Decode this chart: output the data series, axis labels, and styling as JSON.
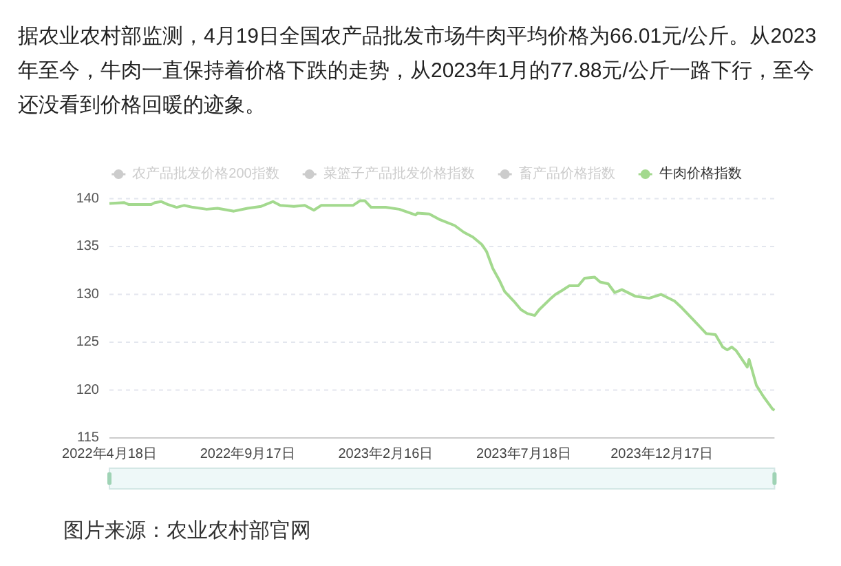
{
  "chart_data": {
    "type": "line",
    "title": "据农业农村部监测，4月19日全国农产品批发市场牛肉平均价格为66.01元/公斤。从2023年至今，牛肉一直保持着价格下跌的走势，从2023年1月的77.88元/公斤一路下行，至今还没看到价格回暖的迹象。",
    "series": [
      {
        "name": "农产品批发价格200指数",
        "color": "#cccccc"
      },
      {
        "name": "菜篮子产品批发价格指数",
        "color": "#cccccc"
      },
      {
        "name": "畜产品价格指数",
        "color": "#cccccc"
      },
      {
        "name": "牛肉价格指数",
        "color": "#a3d98e",
        "x": [
          "2022-04-18",
          "2022-05-04",
          "2022-05-09",
          "2022-06-03",
          "2022-06-07",
          "2022-06-14",
          "2022-06-21",
          "2022-07-01",
          "2022-07-09",
          "2022-07-19",
          "2022-08-03",
          "2022-08-15",
          "2022-09-02",
          "2022-09-17",
          "2022-10-02",
          "2022-10-15",
          "2022-10-23",
          "2022-11-07",
          "2022-11-19",
          "2022-11-29",
          "2022-12-07",
          "2022-12-22",
          "2023-01-11",
          "2023-01-19",
          "2023-01-24",
          "2023-01-31",
          "2023-02-16",
          "2023-03-03",
          "2023-03-21",
          "2023-03-23",
          "2023-04-05",
          "2023-04-17",
          "2023-05-03",
          "2023-05-13",
          "2023-05-23",
          "2023-06-02",
          "2023-06-07",
          "2023-06-14",
          "2023-06-21",
          "2023-06-27",
          "2023-07-07",
          "2023-07-15",
          "2023-07-22",
          "2023-07-30",
          "2023-08-04",
          "2023-08-17",
          "2023-08-22",
          "2023-08-29",
          "2023-09-06",
          "2023-09-16",
          "2023-09-23",
          "2023-10-04",
          "2023-10-10",
          "2023-10-19",
          "2023-10-26",
          "2023-11-03",
          "2023-11-18",
          "2023-12-03",
          "2023-12-16",
          "2023-12-31",
          "2024-01-08",
          "2024-01-20",
          "2024-02-04",
          "2024-02-14",
          "2024-02-22",
          "2024-02-27",
          "2024-03-03",
          "2024-03-08",
          "2024-03-20",
          "2024-03-22",
          "2024-03-25",
          "2024-03-30",
          "2024-04-07",
          "2024-04-17",
          "2024-04-19"
        ],
        "values": [
          139.5,
          139.6,
          139.4,
          139.4,
          139.6,
          139.7,
          139.4,
          139.1,
          139.3,
          139.1,
          138.9,
          139.0,
          138.7,
          139.0,
          139.2,
          139.7,
          139.3,
          139.2,
          139.3,
          138.8,
          139.3,
          139.3,
          139.3,
          139.8,
          139.8,
          139.1,
          139.1,
          138.9,
          138.3,
          138.5,
          138.4,
          137.8,
          137.2,
          136.5,
          136.0,
          135.2,
          134.5,
          132.7,
          131.5,
          130.3,
          129.3,
          128.4,
          128.0,
          127.8,
          128.4,
          129.6,
          130.0,
          130.4,
          130.9,
          130.9,
          131.7,
          131.8,
          131.3,
          131.1,
          130.2,
          130.5,
          129.8,
          129.6,
          130.0,
          129.3,
          128.6,
          127.4,
          125.9,
          125.8,
          124.5,
          124.2,
          124.5,
          124.1,
          122.4,
          123.2,
          122.2,
          120.5,
          119.3,
          118.0,
          117.9
        ]
      }
    ],
    "xlim": [
      "2022-04-18",
      "2024-04-19"
    ],
    "xticks": [
      {
        "value": "2022-04-18",
        "label": "2022年4月18日"
      },
      {
        "value": "2022-09-17",
        "label": "2022年9月17日"
      },
      {
        "value": "2023-02-16",
        "label": "2023年2月16日"
      },
      {
        "value": "2023-07-18",
        "label": "2023年7月18日"
      },
      {
        "value": "2023-12-17",
        "label": "2023年12月17日"
      }
    ],
    "ylim": [
      115,
      140
    ],
    "yticks": [
      115,
      120,
      125,
      130,
      135,
      140
    ],
    "grid": "y",
    "legend": "top",
    "line_style": "solid",
    "annotations": [
      "图片来源：农业农村部官网"
    ]
  }
}
